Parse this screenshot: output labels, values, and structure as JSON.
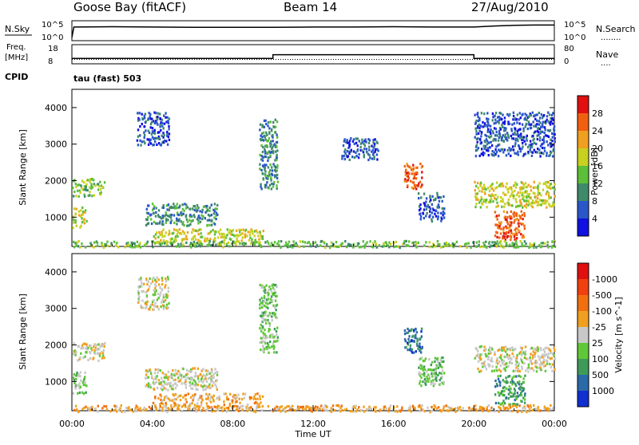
{
  "header": {
    "station": "Goose Bay (fitACF)",
    "beam": "Beam 14",
    "date": "27/Aug/2010"
  },
  "noise_panel": {
    "left_label": "N.Sky",
    "left_ticks": [
      "10^5",
      "10^0"
    ],
    "right_label": "N.Search",
    "right_ticks": [
      "10^5",
      "10^0"
    ],
    "right_legend": "........"
  },
  "freq_panel": {
    "left_label_1": "Freq.",
    "left_label_2": "[MHz]",
    "left_ticks": [
      "18",
      "8"
    ],
    "right_label": "Nave",
    "right_ticks": [
      "80",
      "0"
    ],
    "right_legend": "....",
    "cpid_label": "CPID",
    "cpid_value": "tau (fast) 503"
  },
  "chart_data": [
    {
      "type": "line",
      "title": "N.Sky / N.Search",
      "series": [
        {
          "name": "N.Sky",
          "hours": [
            0,
            0.1,
            2,
            4,
            6,
            8,
            10,
            12,
            14,
            16,
            18,
            20,
            21,
            22,
            23,
            24
          ],
          "log_values": [
            0.5,
            3.6,
            3.7,
            3.6,
            3.5,
            3.5,
            3.5,
            3.6,
            3.6,
            3.7,
            3.6,
            3.6,
            3.9,
            4.1,
            4.2,
            4.2
          ]
        }
      ]
    },
    {
      "type": "line",
      "title": "Freq / Nave",
      "series": [
        {
          "name": "Freq.",
          "hours": [
            0,
            10.0,
            10.0,
            20.0,
            20.0,
            24
          ],
          "values": [
            10.4,
            10.4,
            12.7,
            12.7,
            10.4,
            10.4
          ]
        },
        {
          "name": "Nave",
          "hours": [
            0,
            24
          ],
          "values": [
            14,
            14
          ]
        }
      ]
    },
    {
      "type": "heatmap",
      "quantity": "Power",
      "xlabel": "Time UT",
      "ylabel": "Slant Range [km]",
      "yticks": [
        1000,
        2000,
        3000,
        4000
      ],
      "ylim": [
        200,
        4500
      ],
      "xlim": [
        0,
        24
      ],
      "colorbar_label": "Power [dB]",
      "colorbar_ticks": [
        "4",
        "8",
        "12",
        "16",
        "20",
        "24",
        "28"
      ],
      "colorbar_colors": [
        "#1010e0",
        "#2a56c8",
        "#3f8a6a",
        "#5cbf3a",
        "#c8d020",
        "#f0a020",
        "#f06010",
        "#e01010"
      ],
      "echo_regions": [
        {
          "t0": 0.0,
          "t1": 1.6,
          "r0": 1600,
          "r1": 2100,
          "level": 3
        },
        {
          "t0": 0.0,
          "t1": 0.7,
          "r0": 700,
          "r1": 1300,
          "level": 4
        },
        {
          "t0": 3.2,
          "t1": 4.8,
          "r0": 3000,
          "r1": 3900,
          "level": 1
        },
        {
          "t0": 3.6,
          "t1": 7.2,
          "r0": 800,
          "r1": 1400,
          "level": 2
        },
        {
          "t0": 4.0,
          "t1": 9.5,
          "r0": 300,
          "r1": 700,
          "level": 4
        },
        {
          "t0": 9.3,
          "t1": 10.2,
          "r0": 1800,
          "r1": 3700,
          "level": 2
        },
        {
          "t0": 13.4,
          "t1": 15.2,
          "r0": 2600,
          "r1": 3200,
          "level": 1
        },
        {
          "t0": 16.5,
          "t1": 17.4,
          "r0": 1800,
          "r1": 2500,
          "level": 6
        },
        {
          "t0": 17.2,
          "t1": 18.5,
          "r0": 900,
          "r1": 1700,
          "level": 1
        },
        {
          "t0": 20.0,
          "t1": 24.0,
          "r0": 1300,
          "r1": 2000,
          "level": 4
        },
        {
          "t0": 20.0,
          "t1": 24.0,
          "r0": 2700,
          "r1": 3900,
          "level": 1
        },
        {
          "t0": 21.0,
          "t1": 22.5,
          "r0": 400,
          "r1": 1200,
          "level": 6
        },
        {
          "t0": 0.0,
          "t1": 24.0,
          "r0": 200,
          "r1": 380,
          "level": 3
        }
      ]
    },
    {
      "type": "heatmap",
      "quantity": "Velocity",
      "xlabel": "Time UT",
      "ylabel": "Slant Range [km]",
      "yticks": [
        1000,
        2000,
        3000,
        4000
      ],
      "ylim": [
        200,
        4500
      ],
      "xlim": [
        0,
        24
      ],
      "xticks": [
        "00:00",
        "04:00",
        "08:00",
        "12:00",
        "16:00",
        "20:00",
        "00:00"
      ],
      "colorbar_label": "Velocity [m s^-1]",
      "colorbar_ticks": [
        "1000",
        "500",
        "100",
        "25",
        "-25",
        "-100",
        "-500",
        "-1000"
      ],
      "colorbar_colors": [
        "#1030d0",
        "#2a6aa8",
        "#3f9a5a",
        "#60c838",
        "#c8c8c8",
        "#f0a020",
        "#f07010",
        "#f04010",
        "#e01010"
      ],
      "echo_regions": [
        {
          "t0": 0.0,
          "t1": 1.6,
          "r0": 1600,
          "r1": 2100,
          "level": 4
        },
        {
          "t0": 0.0,
          "t1": 0.7,
          "r0": 700,
          "r1": 1300,
          "level": 3
        },
        {
          "t0": 3.2,
          "t1": 4.8,
          "r0": 3000,
          "r1": 3900,
          "level": 4
        },
        {
          "t0": 3.6,
          "t1": 7.2,
          "r0": 800,
          "r1": 1400,
          "level": 4
        },
        {
          "t0": 4.0,
          "t1": 9.5,
          "r0": 300,
          "r1": 700,
          "level": 5
        },
        {
          "t0": 9.3,
          "t1": 10.2,
          "r0": 1800,
          "r1": 3700,
          "level": 3
        },
        {
          "t0": 16.5,
          "t1": 17.4,
          "r0": 1800,
          "r1": 2500,
          "level": 1
        },
        {
          "t0": 17.2,
          "t1": 18.5,
          "r0": 900,
          "r1": 1700,
          "level": 3
        },
        {
          "t0": 20.0,
          "t1": 24.0,
          "r0": 1300,
          "r1": 2000,
          "level": 4
        },
        {
          "t0": 21.0,
          "t1": 22.5,
          "r0": 400,
          "r1": 1200,
          "level": 2
        },
        {
          "t0": 0.0,
          "t1": 24.0,
          "r0": 200,
          "r1": 380,
          "level": 5
        }
      ]
    }
  ]
}
